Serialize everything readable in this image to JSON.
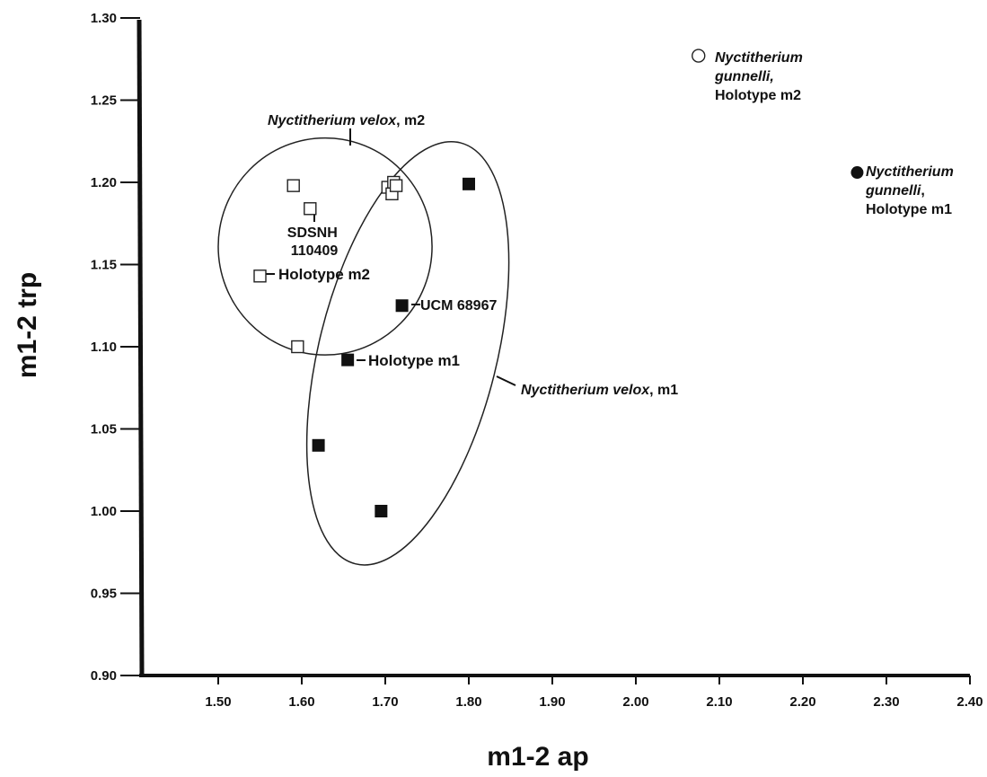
{
  "chart_data": {
    "type": "scatter",
    "xlabel": "m1-2 ap",
    "ylabel": "m1-2 trp",
    "xlim": [
      1.4,
      2.4
    ],
    "ylim": [
      0.9,
      1.3
    ],
    "x_ticks": [
      "1.50",
      "1.60",
      "1.70",
      "1.80",
      "1.90",
      "2.00",
      "2.10",
      "2.20",
      "2.30",
      "2.40"
    ],
    "y_ticks": [
      "0.90",
      "0.95",
      "1.00",
      "1.05",
      "1.10",
      "1.15",
      "1.20",
      "1.25",
      "1.30"
    ],
    "grid": false,
    "series": [
      {
        "group": "m2",
        "marker": "open-square",
        "points": [
          {
            "x": 1.59,
            "y": 1.198
          },
          {
            "x": 1.61,
            "y": 1.184
          },
          {
            "x": 1.55,
            "y": 1.143
          },
          {
            "x": 1.595,
            "y": 1.1
          },
          {
            "x": 1.703,
            "y": 1.197
          },
          {
            "x": 1.71,
            "y": 1.2
          },
          {
            "x": 1.708,
            "y": 1.193
          },
          {
            "x": 1.713,
            "y": 1.198
          }
        ]
      },
      {
        "group": "m1",
        "marker": "filled-square",
        "points": [
          {
            "x": 1.8,
            "y": 1.199
          },
          {
            "x": 1.72,
            "y": 1.125
          },
          {
            "x": 1.655,
            "y": 1.092
          },
          {
            "x": 1.62,
            "y": 1.04
          },
          {
            "x": 1.695,
            "y": 1.0
          }
        ]
      },
      {
        "group": "gunnelli-m2",
        "marker": "open-circle",
        "points": [
          {
            "x": 2.075,
            "y": 1.277
          }
        ]
      },
      {
        "group": "gunnelli-m1",
        "marker": "filled-circle",
        "points": [
          {
            "x": 2.265,
            "y": 1.206
          }
        ]
      }
    ],
    "annotations": {
      "velox_m2": {
        "italic": "Nyctitherium velox",
        "plain": ",  m2"
      },
      "velox_m1": {
        "italic": "Nyctitherium velox",
        "plain": ",  m1"
      },
      "sdsnh": [
        "SDSNH",
        "110409"
      ],
      "holotype_m2": "Holotype m2",
      "holotype_m1": "Holotype m1",
      "ucm": "UCM 68967",
      "gunnelli_m2": [
        "Nyctitherium",
        "gunnelli,",
        "Holotype m2"
      ],
      "gunnelli_m1": [
        "Nyctitherium",
        "gunnelli",
        ",",
        "Holotype m1"
      ]
    },
    "ellipses": [
      {
        "name": "velox-m2",
        "cx": 1.628,
        "cy": 1.161,
        "rx": 0.128,
        "ry": 0.066
      },
      {
        "name": "velox-m1",
        "cx": 1.727,
        "cy": 1.096,
        "rx": 0.1065,
        "ry": 0.132,
        "rotation_deg": 14
      }
    ]
  }
}
